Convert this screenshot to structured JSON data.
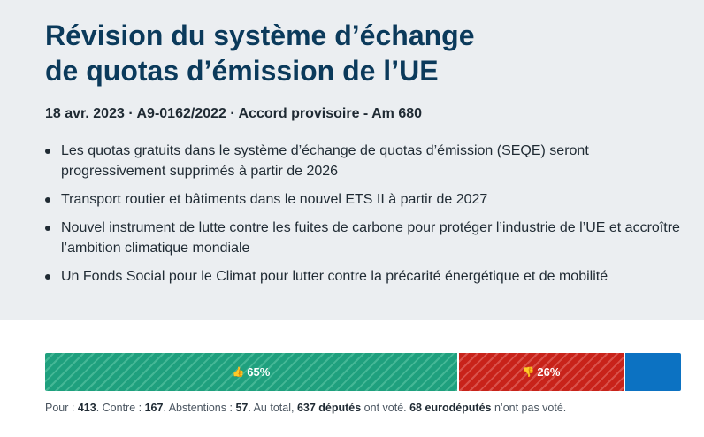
{
  "header": {
    "title_line1": "Révision du système d’échange",
    "title_line2": "de quotas d’émission de l’UE",
    "meta": "18 avr. 2023 · A9-0162/2022 · Accord provisoire - Am 680"
  },
  "bullets": [
    "Les quotas gratuits dans le système d’échange de quotas d’émission (SEQE) seront progressivement supprimés à partir de 2026",
    "Transport routier et bâtiments dans le nouvel ETS II à partir de 2027",
    "Nouvel instrument de lutte contre les fuites de carbone pour protéger l’industrie de l’UE et accroître l’ambition climatique mondiale",
    "Un Fonds Social pour le Climat pour lutter contre la précarité énergétique et de mobilité"
  ],
  "vote": {
    "for_pct_label": "65%",
    "against_pct_label": "26%",
    "for_fraction": 0.648,
    "against_fraction": 0.262,
    "abstention_fraction": 0.09,
    "colors": {
      "for": "#1fa07e",
      "against": "#c8231a",
      "abstention": "#0c72c2"
    },
    "icons": {
      "for": "thumbs-up-icon",
      "against": "thumbs-down-icon"
    }
  },
  "summary": {
    "pour_label": "Pour : ",
    "pour_value": "413",
    "contre_label": ". Contre : ",
    "contre_value": "167",
    "abst_label": ". Abstentions : ",
    "abst_value": "57",
    "total_prefix": ". Au total, ",
    "total_value": "637 députés",
    "total_suffix": " ont voté. ",
    "absent_value": "68 eurodéputés",
    "absent_suffix": " n’ont pas voté."
  }
}
